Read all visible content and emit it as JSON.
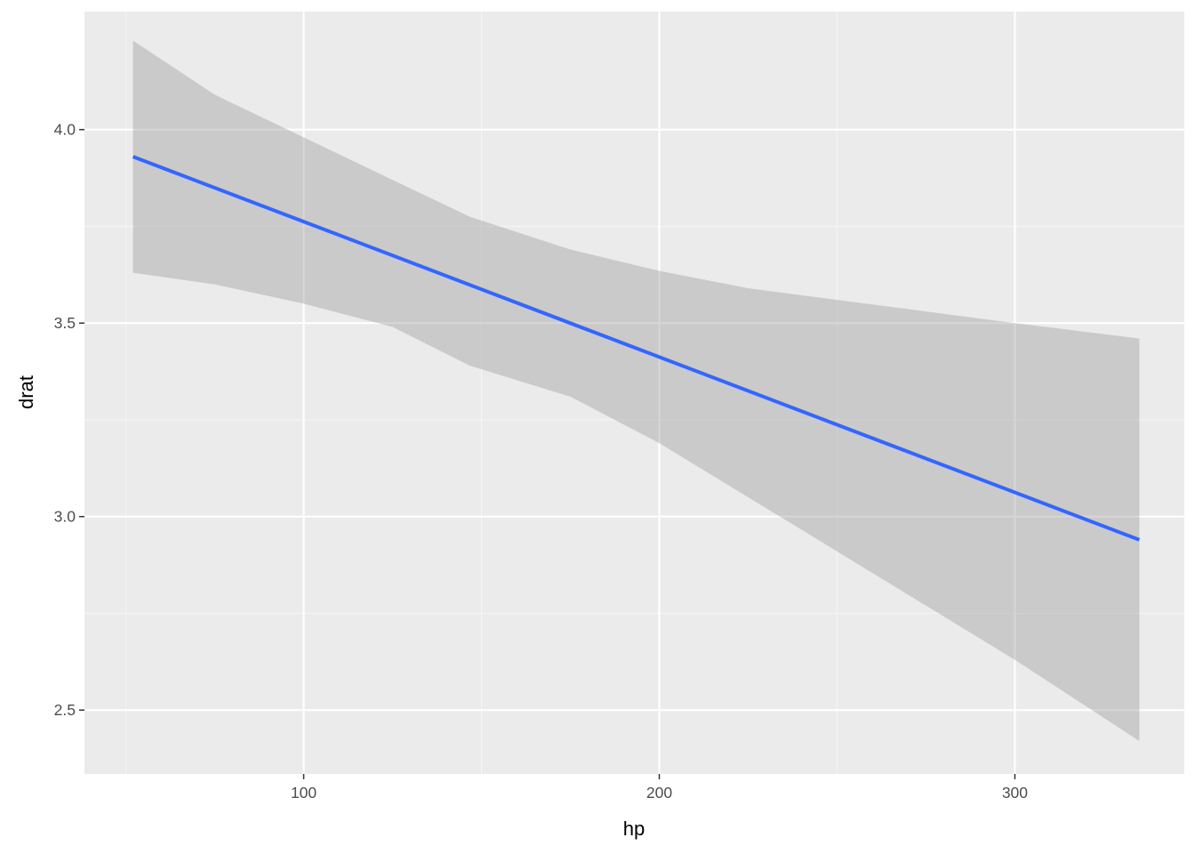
{
  "chart_data": {
    "type": "line",
    "title": "",
    "xlabel": "hp",
    "ylabel": "drat",
    "xlim": [
      38.35,
      347.65
    ],
    "ylim": [
      2.335,
      4.305
    ],
    "x_ticks": [
      100,
      200,
      300
    ],
    "x_tick_labels": [
      "100",
      "200",
      "300"
    ],
    "x_minor_ticks": [
      50,
      150,
      250
    ],
    "y_ticks": [
      2.5,
      3.0,
      3.5,
      4.0
    ],
    "y_tick_labels": [
      "2.5",
      "3.0",
      "3.5",
      "4.0"
    ],
    "y_minor_ticks": [
      2.75,
      3.25,
      3.75
    ],
    "grid": true,
    "legend": "none",
    "series": [
      {
        "type": "smooth_lm",
        "x": [
          52,
          335
        ],
        "y": [
          3.93,
          2.94
        ]
      }
    ],
    "confidence_band": {
      "x": [
        52,
        75,
        100,
        125,
        146.7,
        175,
        200,
        225,
        250,
        275,
        300,
        335
      ],
      "upper": [
        4.23,
        4.09,
        3.98,
        3.87,
        3.775,
        3.69,
        3.635,
        3.59,
        3.56,
        3.53,
        3.5,
        3.46
      ],
      "lower": [
        3.63,
        3.6,
        3.55,
        3.49,
        3.39,
        3.31,
        3.19,
        3.05,
        2.91,
        2.77,
        2.63,
        2.42
      ]
    },
    "colors": {
      "panel_background": "#ebebeb",
      "grid_major": "#ffffff",
      "grid_minor": "#f5f5f5",
      "line": "#3366ff",
      "band": "#999999",
      "tick_text": "#4d4d4d",
      "axis_title": "#000000",
      "tick_mark": "#333333"
    }
  }
}
